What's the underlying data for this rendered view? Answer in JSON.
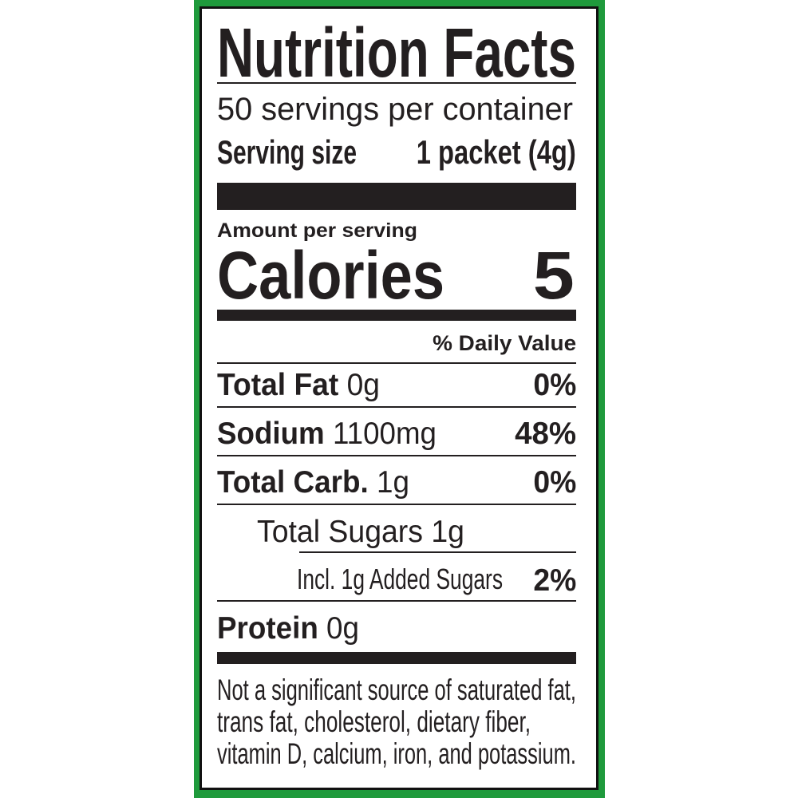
{
  "label": {
    "title": "Nutrition Facts",
    "servings_per_container": "50 servings per container",
    "serving_size_label": "Serving size",
    "serving_size_value": "1 packet (4g)",
    "amount_per_serving": "Amount per serving",
    "calories_label": "Calories",
    "calories_value": "5",
    "daily_value_header": "% Daily Value",
    "nutrients": [
      {
        "name": "Total Fat",
        "amount": "0g",
        "dv": "0%"
      },
      {
        "name": "Sodium",
        "amount": "1100mg",
        "dv": "48%"
      },
      {
        "name": "Total Carb.",
        "amount": "1g",
        "dv": "0%"
      },
      {
        "name": "Total Sugars 1g",
        "amount": "",
        "dv": ""
      },
      {
        "name": "Incl. 1g Added Sugars",
        "amount": "",
        "dv": "2%"
      },
      {
        "name": "Protein",
        "amount": "0g",
        "dv": ""
      }
    ],
    "footnote": [
      "Not a significant source of saturated fat,",
      "trans fat, cholesterol, dietary fiber,",
      "vitamin D, calcium, iron, and potassium."
    ],
    "colors": {
      "border_green": "#1f9a3c",
      "ink": "#231f20"
    }
  }
}
